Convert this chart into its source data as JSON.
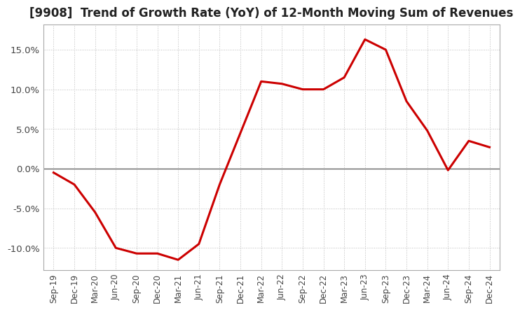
{
  "title": "[9908]  Trend of Growth Rate (YoY) of 12-Month Moving Sum of Revenues",
  "title_fontsize": 12,
  "line_color": "#cc0000",
  "background_color": "#ffffff",
  "plot_bg_color": "#ffffff",
  "grid_color": "#bbbbbb",
  "ylim": [
    -0.128,
    0.182
  ],
  "yticks": [
    -0.1,
    -0.05,
    0.0,
    0.05,
    0.1,
    0.15
  ],
  "ytick_labels": [
    "-10.0%",
    "-5.0%",
    "0.0%",
    "5.0%",
    "10.0%",
    "15.0%"
  ],
  "values": [
    -0.005,
    -0.02,
    -0.055,
    -0.1,
    -0.107,
    -0.107,
    -0.115,
    -0.095,
    -0.02,
    0.045,
    0.11,
    0.107,
    0.1,
    0.1,
    0.115,
    0.163,
    0.15,
    0.085,
    0.048,
    -0.002,
    0.035,
    0.027
  ],
  "xtick_labels": [
    "Sep-19",
    "Dec-19",
    "Mar-20",
    "Jun-20",
    "Sep-20",
    "Dec-20",
    "Mar-21",
    "Jun-21",
    "Sep-21",
    "Dec-21",
    "Mar-22",
    "Jun-22",
    "Sep-22",
    "Dec-22",
    "Mar-23",
    "Jun-23",
    "Sep-23",
    "Dec-23",
    "Mar-24",
    "Jun-24",
    "Sep-24",
    "Dec-24"
  ]
}
